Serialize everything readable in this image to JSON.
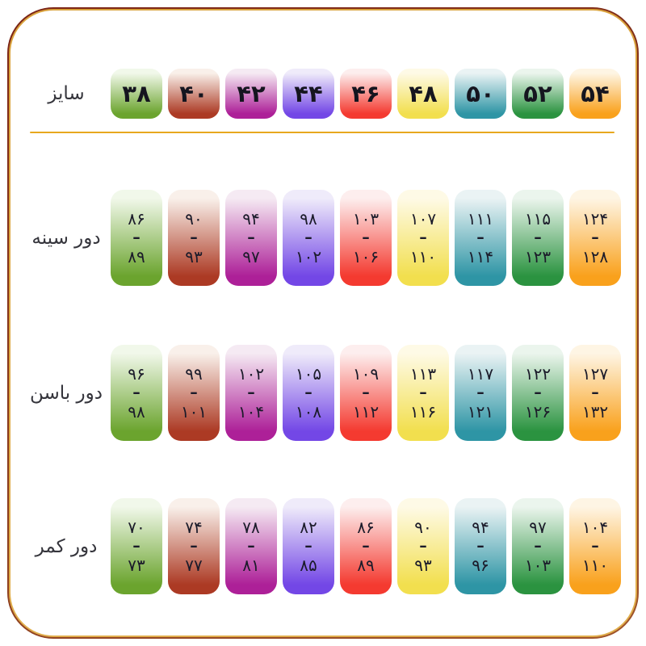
{
  "ui": {
    "dash": "–"
  },
  "colors": {
    "background": "#ffffff",
    "border_dark": "#7b2416",
    "border_gold": "#d9a23c",
    "divider": "#e7a81e",
    "number_text": "#1b1b2a",
    "label_text": "#35353c"
  },
  "palette": [
    {
      "name": "green",
      "light": "#f1f8ea",
      "full": "#6ba42e"
    },
    {
      "name": "brick",
      "light": "#f9f0ea",
      "full": "#ac3a24"
    },
    {
      "name": "magenta",
      "light": "#f5eaf3",
      "full": "#ad2098"
    },
    {
      "name": "violet",
      "light": "#efebfa",
      "full": "#7347e6"
    },
    {
      "name": "red",
      "light": "#fdeeee",
      "full": "#f43a30"
    },
    {
      "name": "yellow",
      "light": "#fefae6",
      "full": "#f2df4e"
    },
    {
      "name": "teal",
      "light": "#eaf3f4",
      "full": "#2e95a5"
    },
    {
      "name": "forest",
      "light": "#ebf5ed",
      "full": "#2b9340"
    },
    {
      "name": "orange",
      "light": "#fef5e4",
      "full": "#f9a11c"
    }
  ],
  "header": {
    "size_label": "سایز",
    "sizes": [
      "۳۸",
      "۴۰",
      "۴۲",
      "۴۴",
      "۴۶",
      "۴۸",
      "۵۰",
      "۵۲",
      "۵۴"
    ]
  },
  "rows": [
    {
      "label": "دور سینه",
      "cells": [
        {
          "from": "۸۶",
          "to": "۸۹"
        },
        {
          "from": "۹۰",
          "to": "۹۳"
        },
        {
          "from": "۹۴",
          "to": "۹۷"
        },
        {
          "from": "۹۸",
          "to": "۱۰۲"
        },
        {
          "from": "۱۰۳",
          "to": "۱۰۶"
        },
        {
          "from": "۱۰۷",
          "to": "۱۱۰"
        },
        {
          "from": "۱۱۱",
          "to": "۱۱۴"
        },
        {
          "from": "۱۱۵",
          "to": "۱۲۳"
        },
        {
          "from": "۱۲۴",
          "to": "۱۲۸"
        }
      ]
    },
    {
      "label": "دور باسن",
      "cells": [
        {
          "from": "۹۶",
          "to": "۹۸"
        },
        {
          "from": "۹۹",
          "to": "۱۰۱"
        },
        {
          "from": "۱۰۲",
          "to": "۱۰۴"
        },
        {
          "from": "۱۰۵",
          "to": "۱۰۸"
        },
        {
          "from": "۱۰۹",
          "to": "۱۱۲"
        },
        {
          "from": "۱۱۳",
          "to": "۱۱۶"
        },
        {
          "from": "۱۱۷",
          "to": "۱۲۱"
        },
        {
          "from": "۱۲۲",
          "to": "۱۲۶"
        },
        {
          "from": "۱۲۷",
          "to": "۱۳۲"
        }
      ]
    },
    {
      "label": "دور کمر",
      "cells": [
        {
          "from": "۷۰",
          "to": "۷۳"
        },
        {
          "from": "۷۴",
          "to": "۷۷"
        },
        {
          "from": "۷۸",
          "to": "۸۱"
        },
        {
          "from": "۸۲",
          "to": "۸۵"
        },
        {
          "from": "۸۶",
          "to": "۸۹"
        },
        {
          "from": "۹۰",
          "to": "۹۳"
        },
        {
          "from": "۹۴",
          "to": "۹۶"
        },
        {
          "from": "۹۷",
          "to": "۱۰۳"
        },
        {
          "from": "۱۰۴",
          "to": "۱۱۰"
        }
      ]
    }
  ],
  "chart_data": {
    "type": "table",
    "title": "",
    "corner_label": "سایز",
    "columns": [
      38,
      40,
      42,
      44,
      46,
      48,
      50,
      52,
      54
    ],
    "rows": [
      {
        "label": "دور سینه",
        "ranges": [
          [
            86,
            89
          ],
          [
            90,
            93
          ],
          [
            94,
            97
          ],
          [
            98,
            102
          ],
          [
            103,
            106
          ],
          [
            107,
            110
          ],
          [
            111,
            114
          ],
          [
            115,
            123
          ],
          [
            124,
            128
          ]
        ]
      },
      {
        "label": "دور باسن",
        "ranges": [
          [
            96,
            98
          ],
          [
            99,
            101
          ],
          [
            102,
            104
          ],
          [
            105,
            108
          ],
          [
            109,
            112
          ],
          [
            113,
            116
          ],
          [
            117,
            121
          ],
          [
            122,
            126
          ],
          [
            127,
            132
          ]
        ]
      },
      {
        "label": "دور کمر",
        "ranges": [
          [
            70,
            73
          ],
          [
            74,
            77
          ],
          [
            78,
            81
          ],
          [
            82,
            85
          ],
          [
            86,
            89
          ],
          [
            90,
            93
          ],
          [
            94,
            96
          ],
          [
            97,
            103
          ],
          [
            104,
            110
          ]
        ]
      }
    ],
    "legend_position": "none",
    "grid": false
  }
}
